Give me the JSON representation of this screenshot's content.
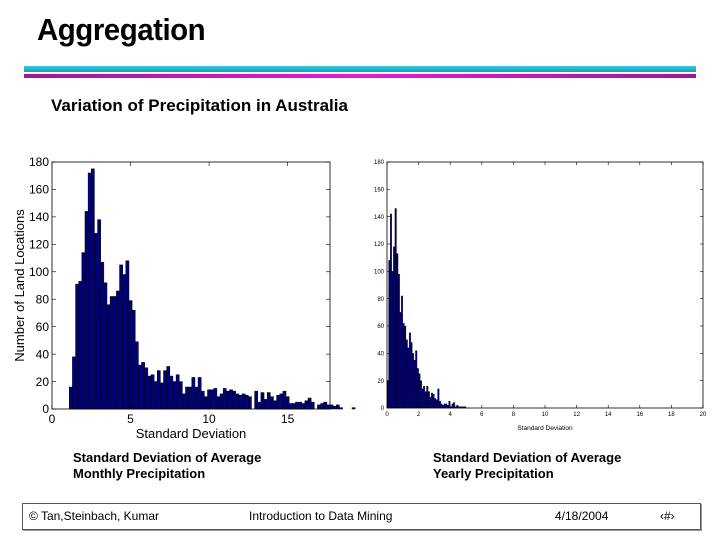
{
  "slide": {
    "title": "Aggregation",
    "subtitle": "Variation of Precipitation in Australia",
    "accent_colors": {
      "line_top": "#1fb4d2",
      "line_bottom": "#d21ad2",
      "bars": "#00007a"
    },
    "captions": {
      "left": [
        "Standard Deviation of Average",
        "Monthly Precipitation"
      ],
      "right": [
        "Standard Deviation of Average",
        "Yearly Precipitation"
      ]
    },
    "footer": {
      "author": "© Tan,Steinbach, Kumar",
      "course": "Introduction to Data Mining",
      "date": "4/18/2004",
      "page": "‹#›"
    }
  },
  "chart_data": [
    {
      "type": "bar",
      "histogram": true,
      "xlabel": "Standard Deviation",
      "ylabel": "Number of Land Locations",
      "xlim": [
        0,
        17.7
      ],
      "ylim": [
        0,
        180
      ],
      "xticks": [
        0,
        5,
        10,
        15
      ],
      "yticks": [
        0,
        20,
        40,
        60,
        80,
        100,
        120,
        140,
        160,
        180
      ],
      "grid": false,
      "bin_start": 1.1,
      "bin_width": 0.2,
      "values": [
        16,
        38,
        91,
        93,
        114,
        144,
        172,
        175,
        128,
        138,
        107,
        92,
        76,
        82,
        82,
        86,
        105,
        98,
        108,
        79,
        72,
        49,
        32,
        34,
        30,
        24,
        25,
        20,
        28,
        19,
        28,
        31,
        24,
        20,
        25,
        20,
        11,
        16,
        16,
        23,
        16,
        23,
        13,
        9,
        14,
        14,
        15,
        9,
        11,
        15,
        13,
        14,
        13,
        11,
        10,
        11,
        10,
        9,
        0,
        13,
        5,
        12,
        7,
        12,
        9,
        6,
        10,
        11,
        13,
        9,
        4,
        4,
        5,
        5,
        4,
        6,
        8,
        5,
        0,
        3,
        4,
        5,
        3,
        3,
        2,
        3,
        1,
        0,
        0,
        0,
        1
      ]
    },
    {
      "type": "bar",
      "histogram": true,
      "xlabel": "Standard Deviation",
      "ylabel": "",
      "xlim": [
        0,
        20
      ],
      "ylim": [
        0,
        180
      ],
      "xticks": [
        0,
        2,
        4,
        6,
        8,
        10,
        12,
        14,
        16,
        18,
        20
      ],
      "yticks": [
        0,
        20,
        40,
        60,
        80,
        100,
        120,
        140,
        160,
        180
      ],
      "grid": false,
      "bin_start": 0,
      "bin_width": 0.1,
      "values": [
        20,
        108,
        142,
        100,
        118,
        146,
        113,
        98,
        70,
        82,
        62,
        60,
        50,
        44,
        55,
        48,
        40,
        35,
        42,
        29,
        25,
        20,
        14,
        16,
        12,
        16,
        12,
        8,
        11,
        10,
        7,
        6,
        14,
        5,
        3,
        2,
        3,
        3,
        2,
        5,
        1,
        3,
        4,
        1,
        2,
        1,
        1,
        1,
        1,
        1
      ]
    }
  ]
}
